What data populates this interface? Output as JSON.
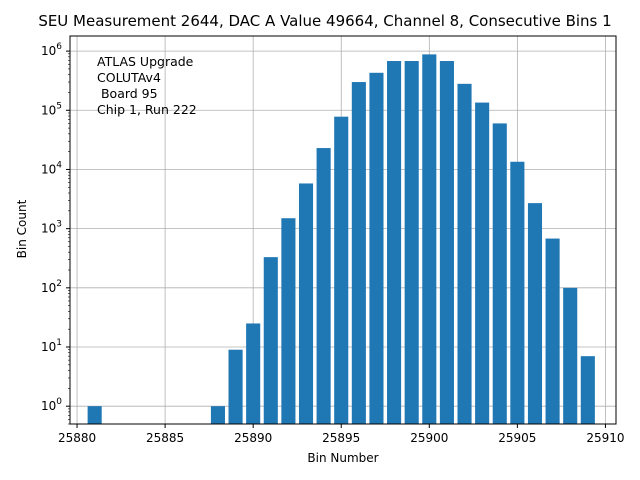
{
  "chart_data": {
    "type": "bar",
    "title": "SEU Measurement 2644, DAC A Value 49664, Channel 8, Consecutive Bins 1",
    "xlabel": "Bin Number",
    "ylabel": "Bin Count",
    "yscale": "log",
    "xlim": [
      25879.6,
      25910.6
    ],
    "ylim": [
      0.5,
      1800000
    ],
    "grid": true,
    "bar_color": "#1f77b4",
    "x_ticks": [
      25880,
      25885,
      25890,
      25895,
      25900,
      25905,
      25910
    ],
    "x_tick_labels": [
      "25880",
      "25885",
      "25890",
      "25895",
      "25900",
      "25905",
      "25910"
    ],
    "y_ticks": [
      1,
      10,
      100,
      1000,
      10000,
      100000,
      1000000
    ],
    "y_tick_bases": [
      "10",
      "10",
      "10",
      "10",
      "10",
      "10",
      "10"
    ],
    "y_tick_exponents": [
      "0",
      "1",
      "2",
      "3",
      "4",
      "5",
      "6"
    ],
    "annotation_lines": [
      "ATLAS Upgrade",
      "COLUTAv4",
      " Board 95",
      "Chip 1, Run 222"
    ],
    "x": [
      25881,
      25888,
      25889,
      25890,
      25891,
      25892,
      25893,
      25894,
      25895,
      25896,
      25897,
      25898,
      25899,
      25900,
      25901,
      25902,
      25903,
      25904,
      25905,
      25906,
      25907,
      25908,
      25909
    ],
    "values": [
      1,
      1,
      9,
      25,
      330,
      1500,
      5800,
      23000,
      78000,
      300000,
      430000,
      680000,
      680000,
      880000,
      680000,
      280000,
      135000,
      60000,
      13500,
      2700,
      680,
      100,
      7
    ]
  }
}
